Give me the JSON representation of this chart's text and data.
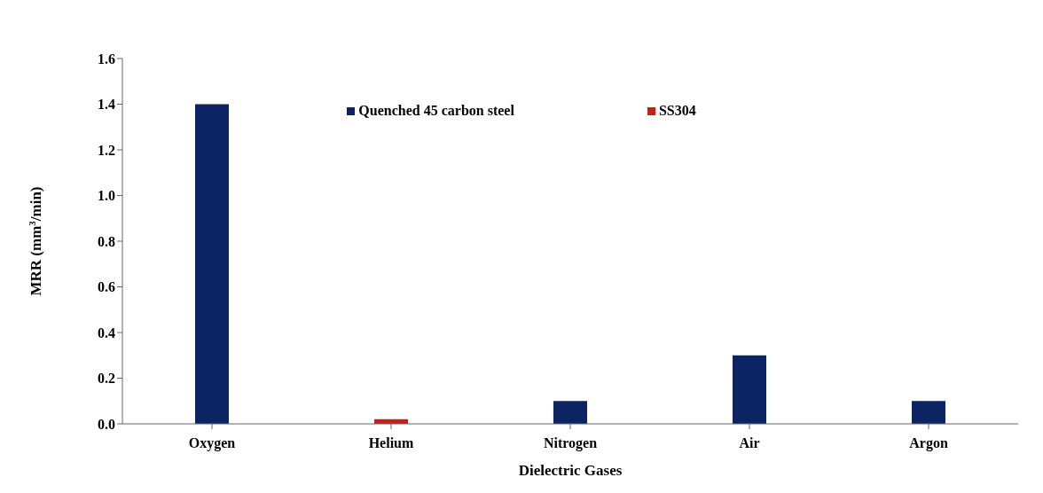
{
  "chart_data": {
    "type": "bar",
    "xlabel": "Dielectric Gases",
    "ylabel": "MRR (mm$^{3}$/min)",
    "categories": [
      "Oxygen",
      "Helium",
      "Nitrogen",
      "Air",
      "Argon"
    ],
    "series": [
      {
        "name": "Quenched 45 carbon steel",
        "color": "#0c2463",
        "values": [
          1.4,
          null,
          0.1,
          0.3,
          0.1
        ]
      },
      {
        "name": "SS304",
        "color": "#c0201e",
        "values": [
          null,
          0.02,
          null,
          null,
          null
        ]
      }
    ],
    "ylim": [
      0,
      1.6
    ],
    "yticks": [
      {
        "value": 0,
        "label": "0.0"
      },
      0.2,
      0.4,
      0.6,
      0.8,
      {
        "value": 1,
        "label": "1.0"
      },
      1.2,
      1.4,
      1.6
    ],
    "legend": "top"
  }
}
